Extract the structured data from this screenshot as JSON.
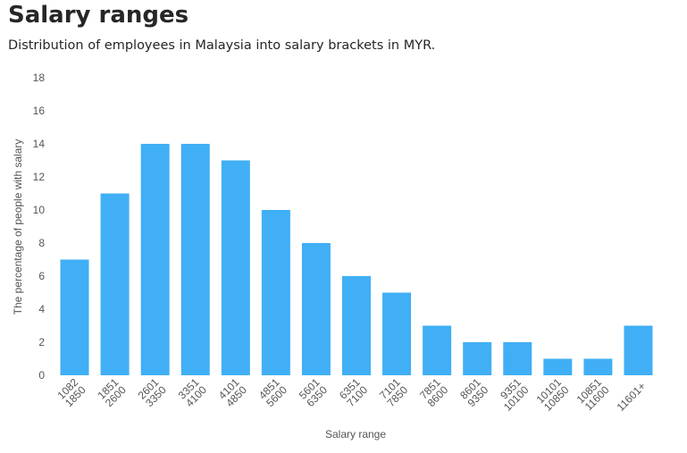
{
  "chart_data": {
    "type": "bar",
    "title": "Salary ranges",
    "subtitle": "Distribution of employees in Malaysia into salary brackets in MYR.",
    "xlabel": "Salary range",
    "ylabel": "The percentage of people with salary",
    "ylim": [
      0,
      18
    ],
    "yticks": [
      0,
      2,
      4,
      6,
      8,
      10,
      12,
      14,
      16,
      18
    ],
    "grid": false,
    "colors": {
      "bar": "#40aff5"
    },
    "categories": [
      [
        "1082",
        "1850"
      ],
      [
        "1851",
        "2600"
      ],
      [
        "2601",
        "3350"
      ],
      [
        "3351",
        "4100"
      ],
      [
        "4101",
        "4850"
      ],
      [
        "4851",
        "5600"
      ],
      [
        "5601",
        "6350"
      ],
      [
        "6351",
        "7100"
      ],
      [
        "7101",
        "7850"
      ],
      [
        "7851",
        "8600"
      ],
      [
        "8601",
        "9350"
      ],
      [
        "9351",
        "10100"
      ],
      [
        "10101",
        "10850"
      ],
      [
        "10851",
        "11600"
      ],
      [
        "11601+"
      ]
    ],
    "values": [
      7,
      11,
      14,
      14,
      13,
      10,
      8,
      6,
      5,
      3,
      2,
      2,
      1,
      1,
      3
    ]
  }
}
